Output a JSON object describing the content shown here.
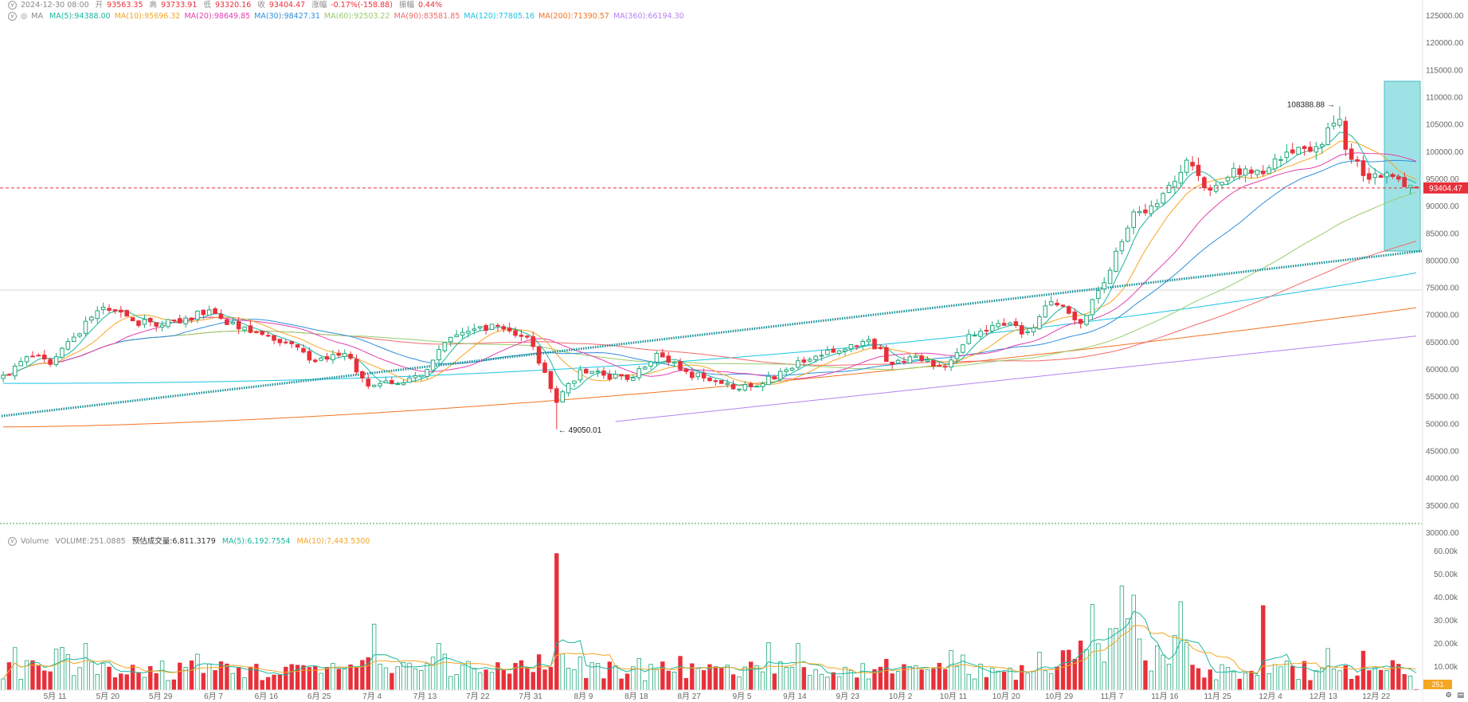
{
  "ohlc_header": {
    "date": "2024-12-30 08:00",
    "open_label": "开",
    "open": "93563.35",
    "high_label": "高",
    "high": "93733.91",
    "low_label": "低",
    "low": "93320.16",
    "close_label": "收",
    "close": "93404.47",
    "change_label": "涨幅",
    "change": "-0.17%(-158.88)",
    "amp_label": "振幅",
    "amp": "0.44%"
  },
  "ma_header": {
    "name": "MA",
    "items": [
      {
        "text": "MA(5):94388.00",
        "color": "#18b7a0"
      },
      {
        "text": "MA(10):95696.32",
        "color": "#f5a623"
      },
      {
        "text": "MA(20):98649.85",
        "color": "#e33fb0"
      },
      {
        "text": "MA(30):98427.31",
        "color": "#2e8fde"
      },
      {
        "text": "MA(60):92503.22",
        "color": "#97cc6c"
      },
      {
        "text": "MA(90):83581.85",
        "color": "#f26a6a"
      },
      {
        "text": "MA(120):77805.16",
        "color": "#19c5e6"
      },
      {
        "text": "MA(200):71390.57",
        "color": "#f27420"
      },
      {
        "text": "MA(360):66194.30",
        "color": "#b682f0"
      }
    ]
  },
  "vol_header": {
    "name": "Volume",
    "volume": "VOLUME:251.0885",
    "est_label": "预估成交量:6,811.3179",
    "ma5": "MA(5):6,192.7554",
    "ma10": "MA(10):7,443.5300",
    "ma5_color": "#18b7a0",
    "ma10_color": "#f5a623"
  },
  "colors": {
    "up": "#1ea87a",
    "down": "#e8303a",
    "trendline": "#138e95",
    "box": "#7fd8dc",
    "price_tag": "#e8303a",
    "ma5": "#18b7a0",
    "ma10": "#f5a623",
    "ma20": "#e33fb0",
    "ma30": "#2e8fde",
    "ma60": "#97cc6c",
    "ma90": "#f26a6a",
    "ma120": "#19c5e6",
    "ma200": "#f27420",
    "ma360": "#b682f0"
  },
  "chart_data": {
    "type": "candlestick",
    "price_axis": {
      "ylim": [
        30000,
        125000
      ],
      "ticks": [
        "125000.00",
        "120000.00",
        "115000.00",
        "110000.00",
        "105000.00",
        "100000.00",
        "95000.00",
        "90000.00",
        "85000.00",
        "80000.00",
        "75000.00",
        "70000.00",
        "65000.00",
        "60000.00",
        "55000.00",
        "50000.00",
        "45000.00",
        "40000.00",
        "35000.00",
        "30000.00"
      ]
    },
    "volume_axis": {
      "ylim": [
        0,
        62000
      ],
      "ticks": [
        "60.00k",
        "50.00k",
        "40.00k",
        "30.00k",
        "20.00k",
        "10.00k"
      ]
    },
    "x_labels": [
      "5月 11",
      "5月 20",
      "5月 29",
      "6月 7",
      "6月 16",
      "6月 25",
      "7月 4",
      "7月 13",
      "7月 22",
      "7月 31",
      "8月 9",
      "8月 18",
      "8月 27",
      "9月 5",
      "9月 14",
      "9月 23",
      "10月 2",
      "10月 11",
      "10月 20",
      "10月 29",
      "11月 7",
      "11月 16",
      "11月 25",
      "12月 4",
      "12月 13",
      "12月 22"
    ],
    "annotations": {
      "high": "108388.88",
      "low": "49050.01",
      "last_price": "93404.47",
      "last_volume": "251"
    },
    "anchor_points": [
      {
        "date": "5月 3",
        "close": 59000
      },
      {
        "date": "5月 8",
        "close": 62500
      },
      {
        "date": "5月 11",
        "close": 61000
      },
      {
        "date": "5月 15",
        "close": 66000
      },
      {
        "date": "5月 20",
        "close": 71500
      },
      {
        "date": "5月 25",
        "close": 69000
      },
      {
        "date": "5月 29",
        "close": 68000
      },
      {
        "date": "6月 3",
        "close": 69500
      },
      {
        "date": "6月 7",
        "close": 71000
      },
      {
        "date": "6月 12",
        "close": 67500
      },
      {
        "date": "6月 16",
        "close": 66500
      },
      {
        "date": "6月 20",
        "close": 65000
      },
      {
        "date": "6月 25",
        "close": 61500
      },
      {
        "date": "6月 30",
        "close": 63000
      },
      {
        "date": "7月 4",
        "close": 57000
      },
      {
        "date": "7月 8",
        "close": 57500
      },
      {
        "date": "7月 13",
        "close": 59000
      },
      {
        "date": "7月 17",
        "close": 65000
      },
      {
        "date": "7月 22",
        "close": 67500
      },
      {
        "date": "7月 27",
        "close": 68000
      },
      {
        "date": "7月 31",
        "close": 66000
      },
      {
        "date": "8月 5",
        "close": 54000
      },
      {
        "date": "8月 9",
        "close": 60000
      },
      {
        "date": "8月 14",
        "close": 59000
      },
      {
        "date": "8月 18",
        "close": 58500
      },
      {
        "date": "8月 23",
        "close": 63000
      },
      {
        "date": "8月 27",
        "close": 60000
      },
      {
        "date": "9月 1",
        "close": 58000
      },
      {
        "date": "9月 5",
        "close": 56500
      },
      {
        "date": "9月 9",
        "close": 57000
      },
      {
        "date": "9月 14",
        "close": 60000
      },
      {
        "date": "9月 19",
        "close": 62500
      },
      {
        "date": "9月 23",
        "close": 63500
      },
      {
        "date": "9月 28",
        "close": 65500
      },
      {
        "date": "10月 2",
        "close": 61000
      },
      {
        "date": "10月 6",
        "close": 62500
      },
      {
        "date": "10月 11",
        "close": 60500
      },
      {
        "date": "10月 15",
        "close": 66500
      },
      {
        "date": "10月 20",
        "close": 68500
      },
      {
        "date": "10月 25",
        "close": 67000
      },
      {
        "date": "10月 29",
        "close": 72500
      },
      {
        "date": "11月 3",
        "close": 68500
      },
      {
        "date": "11月 7",
        "close": 76000
      },
      {
        "date": "11月 12",
        "close": 89000
      },
      {
        "date": "11月 16",
        "close": 90500
      },
      {
        "date": "11月 21",
        "close": 98500
      },
      {
        "date": "11月 25",
        "close": 93000
      },
      {
        "date": "11月 29",
        "close": 97000
      },
      {
        "date": "12月 4",
        "close": 96000
      },
      {
        "date": "12月 8",
        "close": 100000
      },
      {
        "date": "12月 13",
        "close": 101000
      },
      {
        "date": "12月 17",
        "close": 106000
      },
      {
        "date": "12月 18",
        "close": 100500
      },
      {
        "date": "12月 22",
        "close": 95000
      },
      {
        "date": "12月 26",
        "close": 95500
      },
      {
        "date": "12月 30",
        "close": 93404.47
      }
    ]
  }
}
